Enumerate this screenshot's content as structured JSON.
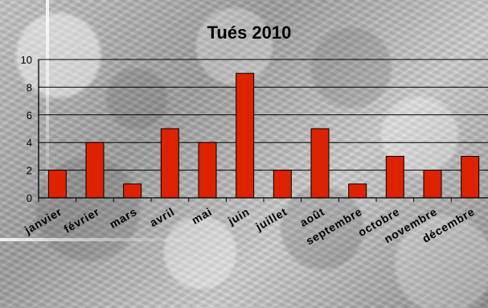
{
  "chart_data": {
    "type": "bar",
    "title": "Tués 2010",
    "categories": [
      "janvier",
      "février",
      "mars",
      "avril",
      "mai",
      "juin",
      "juillet",
      "août",
      "septembre",
      "octobre",
      "novembre",
      "décembre"
    ],
    "values": [
      2,
      4,
      1,
      5,
      4,
      9,
      2,
      5,
      1,
      3,
      2,
      3
    ],
    "xlabel": "",
    "ylabel": "",
    "ylim": [
      0,
      10
    ],
    "yticks": [
      0,
      2,
      4,
      6,
      8,
      10
    ],
    "grid": true,
    "legend": "none",
    "colors": {
      "bar_fill": "#dd2200",
      "bar_stroke": "#000000",
      "axis": "#000000",
      "grid": "#000000"
    }
  }
}
